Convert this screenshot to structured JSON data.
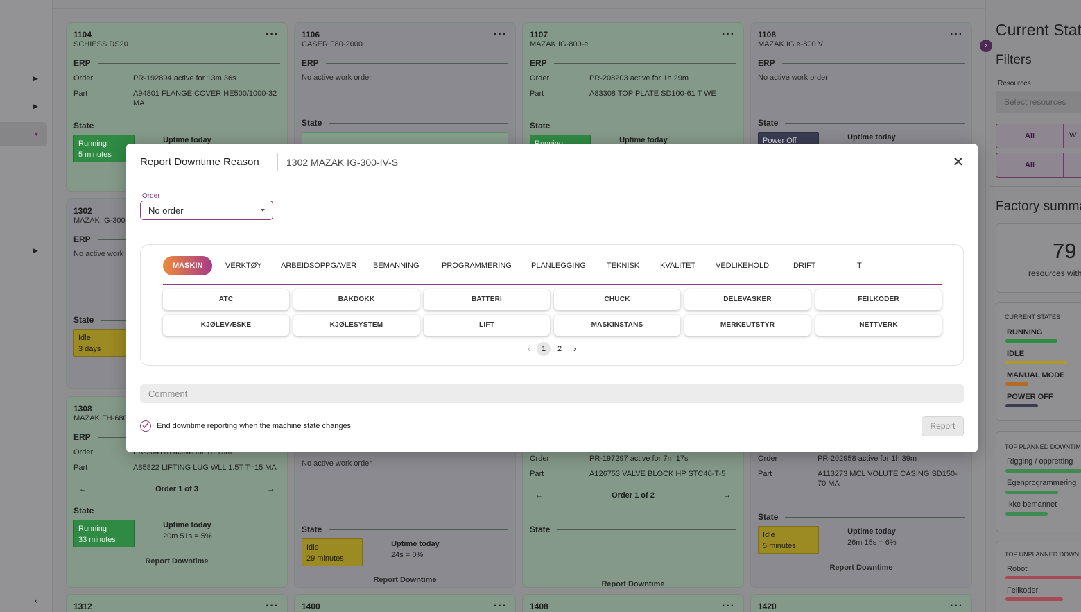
{
  "cards": [
    {
      "id": "1104",
      "name": "SCHIESS DS20",
      "erp": "ERP",
      "order_key": "Order",
      "order_val": "PR-192894  active for 13m 36s",
      "part_key": "Part",
      "part_val": "A94801 FLANGE COVER HE500/1000-32 MA",
      "state": "State",
      "state_pill": "Running",
      "state_dur": "5 minutes",
      "uptime_label": "Uptime today"
    },
    {
      "id": "1106",
      "name": "CASER F80-2000",
      "erp": "ERP",
      "no_order": "No active work order",
      "state": "State"
    },
    {
      "id": "1107",
      "name": "MAZAK IG-800-e",
      "erp": "ERP",
      "order_key": "Order",
      "order_val": "PR-208203  active for 1h 29m",
      "part_key": "Part",
      "part_val": "A83308 TOP PLATE SD100-61 T WE",
      "state": "State",
      "state_pill": "Running",
      "uptime_label": "Uptime today"
    },
    {
      "id": "1108",
      "name": "MAZAK IG e-800 V",
      "erp": "ERP",
      "no_order": "No active work order",
      "state": "State",
      "state_pill": "Power Off",
      "uptime_label": "Uptime today"
    },
    {
      "id": "1302",
      "name": "MAZAK IG-300-",
      "erp": "ERP",
      "no_order": "No active work",
      "state": "State",
      "state_pill": "Idle",
      "state_dur": "3 days"
    },
    {
      "id": "1308",
      "name": "MAZAK FH-680",
      "erp": "ERP",
      "order_key": "Order",
      "order_val": "PR-204118  active for 1h 13m",
      "part_key": "Part",
      "part_val": "A85822 LIFTING LUG WLL 1.5T T=15 MA",
      "order_nav": "Order 1 of 3",
      "state": "State",
      "state_pill": "Running",
      "state_dur": "33 minutes",
      "uptime_label": "Uptime today",
      "uptime_val": "20m 51s = 5%",
      "report": "Report Downtime"
    },
    {
      "no_order": "No active work order",
      "state": "State",
      "state_pill": "Idle",
      "state_dur": "29 minutes",
      "uptime_label": "Uptime today",
      "uptime_val": "24s = 0%",
      "report": "Report Downtime"
    },
    {
      "order_key": "Order",
      "order_val": "PR-197297  active for 7m 17s",
      "part_key": "Part",
      "part_val": "A126753 VALVE BLOCK HP STC40-T-5",
      "order_nav": "Order 1 of 2",
      "state": "State",
      "report": "Report Downtime"
    },
    {
      "order_key": "Order",
      "order_val": "PR-202958  active for 1h 39m",
      "part_key": "Part",
      "part_val": "A113273 MCL VOLUTE CASING SD150-70 MA",
      "state": "State",
      "state_pill": "Idle",
      "state_dur": "5 minutes",
      "uptime_label": "Uptime today",
      "uptime_val": "26m 15s = 6%",
      "report": "Report Downtime"
    },
    {
      "id": "1312"
    },
    {
      "id": "1400"
    },
    {
      "id": "1408"
    },
    {
      "id": "1420"
    }
  ],
  "right_panel": {
    "title": "Current State",
    "filters": "Filters",
    "resources_label": "Resources",
    "resources_placeholder": "Select resources",
    "toggle1_on": "All",
    "toggle1_off": "W",
    "toggle2_on": "All",
    "factory": "Factory summa",
    "big_number": "79",
    "big_sub": "resources with",
    "current_states": "CURRENT STATES",
    "states": [
      "RUNNING",
      "IDLE",
      "MANUAL MODE",
      "POWER OFF"
    ],
    "top_planned": "TOP PLANNED DOWNTIM",
    "planned": [
      "Rigging / oppretting",
      "Egenprogrammering",
      "Ikke bemannet"
    ],
    "top_unplanned": "TOP UNPLANNED DOWN",
    "unplanned": [
      "Robot",
      "Feilkoder"
    ],
    "colors": {
      "running": "#2f8a43",
      "idle": "#b09a2a",
      "manual": "#b36a2a",
      "off": "#3a3c52",
      "planned": "#3f8a50",
      "unplanned": "#a84a55"
    }
  },
  "modal": {
    "title": "Report Downtime Reason",
    "machine": "1302 MAZAK IG-300-IV-S",
    "order_label": "Order",
    "order_value": "No order",
    "tabs": [
      "MASKIN",
      "VERKTØY",
      "ARBEIDSOPPGAVER",
      "BEMANNING",
      "PROGRAMMERING",
      "PLANLEGGING",
      "TEKNISK",
      "KVALITET",
      "VEDLIKEHOLD",
      "DRIFT",
      "IT"
    ],
    "reasons": [
      "ATC",
      "BAKDOKK",
      "BATTERI",
      "CHUCK",
      "DELEVASKER",
      "FEILKODER",
      "KJØLEVÆSKE",
      "KJØLESYSTEM",
      "LIFT",
      "MASKINSTANS",
      "MERKEUTSTYR",
      "NETTVERK"
    ],
    "pages": [
      "1",
      "2"
    ],
    "comment_placeholder": "Comment",
    "checkbox_label": "End downtime reporting when the machine state changes",
    "report_button": "Report",
    "accent": "#8b3c82"
  }
}
